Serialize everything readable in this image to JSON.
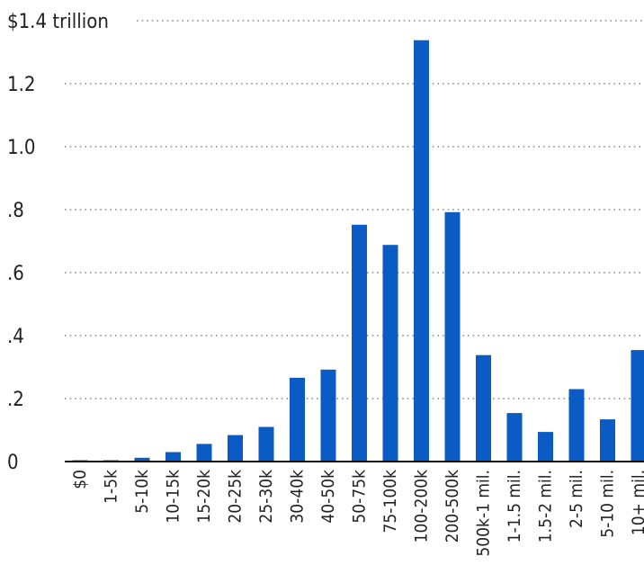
{
  "chart_data": {
    "type": "bar",
    "title": "",
    "xlabel": "",
    "ylabel": "",
    "ylim": [
      0,
      1.4
    ],
    "grid": true,
    "legend": "none",
    "y_ticks": [
      {
        "value": 0,
        "label": "0"
      },
      {
        "value": 0.2,
        "label": ".2"
      },
      {
        "value": 0.4,
        "label": ".4"
      },
      {
        "value": 0.6,
        "label": ".6"
      },
      {
        "value": 0.8,
        "label": ".8"
      },
      {
        "value": 1.0,
        "label": "1.0"
      },
      {
        "value": 1.2,
        "label": "1.2"
      },
      {
        "value": 1.4,
        "label": "$1.4 trillion"
      }
    ],
    "categories": [
      "$0",
      "1-5k",
      "5-10k",
      "10-15k",
      "15-20k",
      "20-25k",
      "25-30k",
      "30-40k",
      "40-50k",
      "50-75k",
      "75-100k",
      "100-200k",
      "200-500k",
      "500k-1 mil.",
      "1-1.5 mil.",
      "1.5-2 mil.",
      "2-5 mil.",
      "5-10 mil.",
      "10+ mil."
    ],
    "values": [
      0.002,
      0.004,
      0.012,
      0.03,
      0.056,
      0.084,
      0.11,
      0.266,
      0.292,
      0.752,
      0.688,
      1.338,
      0.792,
      0.338,
      0.154,
      0.094,
      0.23,
      0.134,
      0.354
    ],
    "bar_color": "#0a5bc4"
  }
}
